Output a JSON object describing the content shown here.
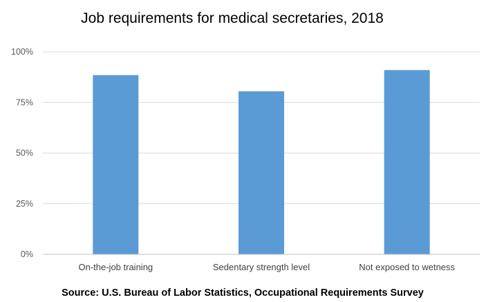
{
  "chart_data": {
    "type": "bar",
    "title": "Job requirements for medical secretaries, 2018",
    "categories": [
      "On-the-job training",
      "Sedentary strength level",
      "Not exposed to wetness"
    ],
    "values": [
      88.5,
      80.5,
      91.0
    ],
    "ylim": [
      0,
      100
    ],
    "yticks": [
      0,
      25,
      50,
      75,
      100
    ],
    "ytick_labels": [
      "0%",
      "25%",
      "50%",
      "75%",
      "100%"
    ],
    "xlabel": "",
    "ylabel": "",
    "grid": true,
    "bar_color": "#5b9bd5",
    "source": "Source: U.S. Bureau of Labor Statistics, Occupational Requirements Survey"
  }
}
